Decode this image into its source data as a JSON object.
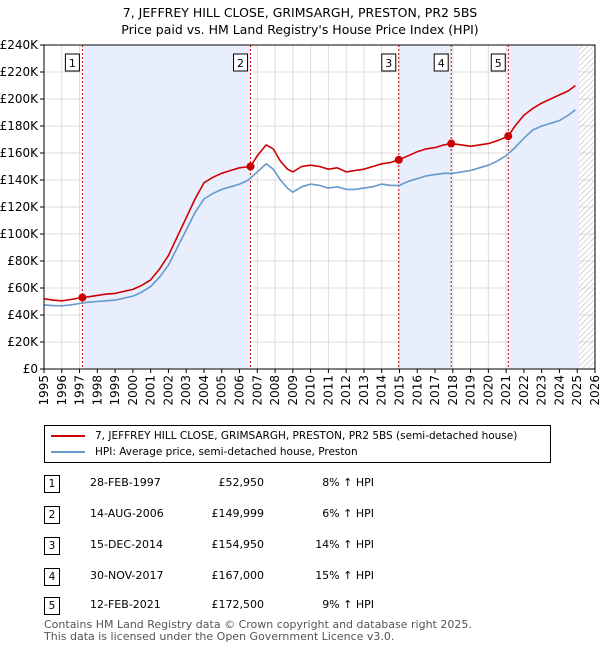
{
  "chart_data": {
    "type": "line",
    "title": "7, JEFFREY HILL CLOSE, GRIMSARGH, PRESTON, PR2 5BS",
    "subtitle": "Price paid vs. HM Land Registry's House Price Index (HPI)",
    "xlabel": "",
    "ylabel": "",
    "xlim": [
      1995,
      2026
    ],
    "ylim": [
      0,
      240000
    ],
    "y_ticks": [
      0,
      20000,
      40000,
      60000,
      80000,
      100000,
      120000,
      140000,
      160000,
      180000,
      200000,
      220000,
      240000
    ],
    "y_tick_labels": [
      "£0",
      "£20K",
      "£40K",
      "£60K",
      "£80K",
      "£100K",
      "£120K",
      "£140K",
      "£160K",
      "£180K",
      "£200K",
      "£220K",
      "£240K"
    ],
    "x_ticks": [
      1995,
      1996,
      1997,
      1998,
      1999,
      2000,
      2001,
      2002,
      2003,
      2004,
      2005,
      2006,
      2007,
      2008,
      2009,
      2010,
      2011,
      2012,
      2013,
      2014,
      2015,
      2016,
      2017,
      2018,
      2019,
      2020,
      2021,
      2022,
      2023,
      2024,
      2025,
      2026
    ],
    "x_tick_labels": [
      "1995",
      "1996",
      "1997",
      "1998",
      "1999",
      "2000",
      "2001",
      "2002",
      "2003",
      "2004",
      "2005",
      "2006",
      "2007",
      "2008",
      "2009",
      "2010",
      "2011",
      "2012",
      "2013",
      "2014",
      "2015",
      "2016",
      "2017",
      "2018",
      "2019",
      "2020",
      "2021",
      "2022",
      "2023",
      "2024",
      "2025",
      "2026"
    ],
    "grid": true,
    "hatched_region_start": 2025.1,
    "shaded_spans": [
      [
        1997.16,
        2006.62
      ],
      [
        2014.96,
        2017.91
      ],
      [
        2021.12,
        2025.1
      ]
    ],
    "series": [
      {
        "name": "7, JEFFREY HILL CLOSE, GRIMSARGH, PRESTON, PR2 5BS (semi-detached house)",
        "color": "#cc0000",
        "x": [
          1995.0,
          1995.5,
          1996.0,
          1996.5,
          1997.16,
          1997.5,
          1998.0,
          1998.5,
          1999.0,
          1999.5,
          2000.0,
          2000.5,
          2001.0,
          2001.5,
          2002.0,
          2002.5,
          2003.0,
          2003.5,
          2004.0,
          2004.5,
          2005.0,
          2005.5,
          2006.0,
          2006.62,
          2007.0,
          2007.5,
          2007.9,
          2008.3,
          2008.7,
          2009.0,
          2009.5,
          2010.0,
          2010.5,
          2011.0,
          2011.5,
          2012.0,
          2012.5,
          2013.0,
          2013.5,
          2014.0,
          2014.5,
          2014.96,
          2015.5,
          2016.0,
          2016.5,
          2017.0,
          2017.5,
          2017.91,
          2018.5,
          2019.0,
          2019.5,
          2020.0,
          2020.5,
          2021.12,
          2021.5,
          2022.0,
          2022.5,
          2023.0,
          2023.5,
          2024.0,
          2024.5,
          2024.9
        ],
        "values": [
          52000,
          51000,
          50500,
          51500,
          52950,
          53500,
          54500,
          55500,
          56000,
          57500,
          59000,
          62000,
          66000,
          74000,
          84000,
          98000,
          112000,
          126000,
          138000,
          142000,
          145000,
          147000,
          149000,
          149999,
          158000,
          166000,
          163000,
          154000,
          148000,
          146000,
          150000,
          151000,
          150000,
          148000,
          149000,
          146000,
          147000,
          148000,
          150000,
          152000,
          153000,
          154950,
          158000,
          161000,
          163000,
          164000,
          166000,
          167000,
          166000,
          165000,
          166000,
          167000,
          169000,
          172500,
          180000,
          188000,
          193000,
          197000,
          200000,
          203000,
          206000,
          210000
        ]
      },
      {
        "name": "HPI: Average price, semi-detached house, Preston",
        "color": "#6699cc",
        "x": [
          1995.0,
          1995.5,
          1996.0,
          1996.5,
          1997.0,
          1997.5,
          1998.0,
          1998.5,
          1999.0,
          1999.5,
          2000.0,
          2000.5,
          2001.0,
          2001.5,
          2002.0,
          2002.5,
          2003.0,
          2003.5,
          2004.0,
          2004.5,
          2005.0,
          2005.5,
          2006.0,
          2006.5,
          2007.0,
          2007.5,
          2007.9,
          2008.3,
          2008.7,
          2009.0,
          2009.5,
          2010.0,
          2010.5,
          2011.0,
          2011.5,
          2012.0,
          2012.5,
          2013.0,
          2013.5,
          2014.0,
          2014.5,
          2015.0,
          2015.5,
          2016.0,
          2016.5,
          2017.0,
          2017.5,
          2018.0,
          2018.5,
          2019.0,
          2019.5,
          2020.0,
          2020.5,
          2021.0,
          2021.5,
          2022.0,
          2022.5,
          2023.0,
          2023.5,
          2024.0,
          2024.5,
          2024.9
        ],
        "values": [
          47500,
          47000,
          46800,
          47500,
          48500,
          49500,
          50000,
          50500,
          51000,
          52500,
          54000,
          57000,
          61000,
          68000,
          77000,
          90000,
          103000,
          116000,
          126000,
          130000,
          133000,
          135000,
          137000,
          140000,
          146000,
          152000,
          148000,
          140000,
          134000,
          131000,
          135000,
          137000,
          136000,
          134000,
          135000,
          133000,
          133000,
          134000,
          135000,
          137000,
          136000,
          136000,
          139000,
          141000,
          143000,
          144000,
          145000,
          145000,
          146000,
          147000,
          149000,
          151000,
          154000,
          158000,
          164000,
          171000,
          177000,
          180000,
          182000,
          184000,
          188000,
          192000
        ]
      }
    ],
    "sale_markers": [
      {
        "label": "1",
        "x": 1997.16,
        "value": 52950
      },
      {
        "label": "2",
        "x": 2006.62,
        "value": 149999
      },
      {
        "label": "3",
        "x": 2014.96,
        "value": 154950
      },
      {
        "label": "4",
        "x": 2017.91,
        "value": 167000
      },
      {
        "label": "5",
        "x": 2021.12,
        "value": 172500
      }
    ]
  },
  "legend": {
    "property_label": "7, JEFFREY HILL CLOSE, GRIMSARGH, PRESTON, PR2 5BS (semi-detached house)",
    "hpi_label": "HPI: Average price, semi-detached house, Preston"
  },
  "transactions": [
    {
      "num": "1",
      "date": "28-FEB-1997",
      "price": "£52,950",
      "hpi": "8% ↑ HPI"
    },
    {
      "num": "2",
      "date": "14-AUG-2006",
      "price": "£149,999",
      "hpi": "6% ↑ HPI"
    },
    {
      "num": "3",
      "date": "15-DEC-2014",
      "price": "£154,950",
      "hpi": "14% ↑ HPI"
    },
    {
      "num": "4",
      "date": "30-NOV-2017",
      "price": "£167,000",
      "hpi": "15% ↑ HPI"
    },
    {
      "num": "5",
      "date": "12-FEB-2021",
      "price": "£172,500",
      "hpi": "9% ↑ HPI"
    }
  ],
  "footer": {
    "line1": "Contains HM Land Registry data © Crown copyright and database right 2025.",
    "line2": "This data is licensed under the Open Government Licence v3.0."
  }
}
